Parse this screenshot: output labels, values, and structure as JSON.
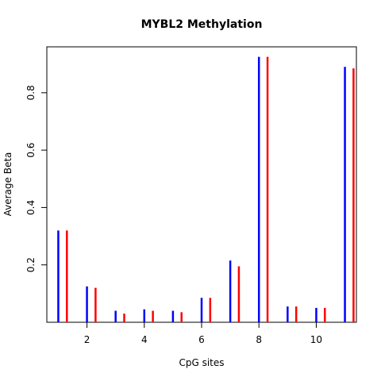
{
  "chart_data": {
    "type": "bar",
    "title": "MYBL2 Methylation",
    "xlabel": "CpG sites",
    "ylabel": "Average Beta",
    "x": [
      1,
      2,
      3,
      4,
      5,
      6,
      7,
      8,
      9,
      10,
      11
    ],
    "xlim": [
      0.6,
      11.4
    ],
    "ylim": [
      0,
      0.96
    ],
    "x_ticks": [
      2,
      4,
      6,
      8,
      10
    ],
    "y_ticks": [
      0.2,
      0.4,
      0.6,
      0.8
    ],
    "x_tick_labels": [
      "2",
      "4",
      "6",
      "8",
      "10"
    ],
    "y_tick_labels": [
      "0.2",
      "0.4",
      "0.6",
      "0.8"
    ],
    "grid": false,
    "series": [
      {
        "color": "#0000ff",
        "values": [
          0.32,
          0.125,
          0.04,
          0.045,
          0.04,
          0.085,
          0.215,
          0.925,
          0.055,
          0.05,
          0.89
        ]
      },
      {
        "color": "#ff0000",
        "values": [
          0.32,
          0.12,
          0.03,
          0.04,
          0.035,
          0.085,
          0.195,
          0.925,
          0.055,
          0.05,
          0.885
        ]
      }
    ]
  }
}
